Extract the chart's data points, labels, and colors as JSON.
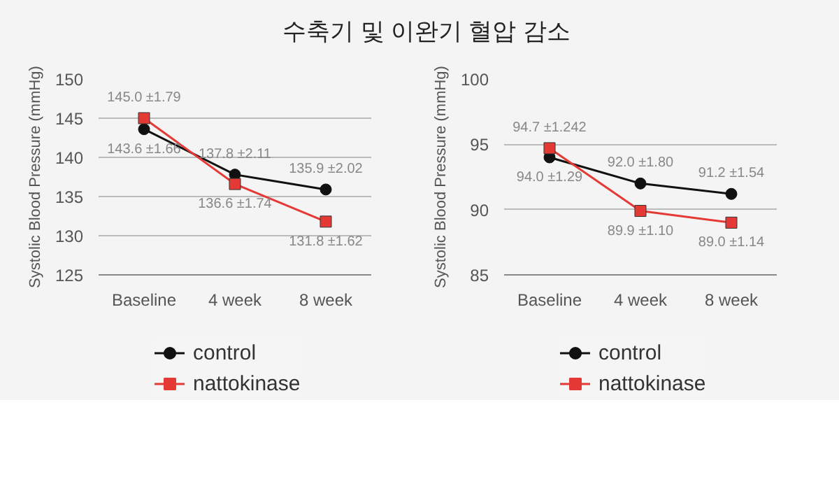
{
  "chart_data": [
    {
      "type": "line",
      "title": "수축기 및 이완기 혈압 감소",
      "ylabel": "Systolic Blood Pressure (mmHg)",
      "categories": [
        "Baseline",
        "4 week",
        "8 week"
      ],
      "ylim": [
        125,
        150
      ],
      "yticks": [
        125,
        130,
        135,
        140,
        145,
        150
      ],
      "grid": "y",
      "legend": "bottom",
      "series": [
        {
          "name": "control",
          "color": "#111111",
          "marker": "circle",
          "values": [
            143.6,
            137.8,
            135.9
          ],
          "value_labels": [
            "143.6 ±1.66",
            "137.8 ±2.11",
            "135.9 ±2.02"
          ]
        },
        {
          "name": "nattokinase",
          "color": "#e53935",
          "marker": "square",
          "values": [
            145.0,
            136.6,
            131.8
          ],
          "value_labels": [
            "145.0 ±1.79",
            "136.6 ±1.74",
            "131.8 ±1.62"
          ]
        }
      ]
    },
    {
      "type": "line",
      "ylabel": "Systolic Blood Pressure (mmHg)",
      "categories": [
        "Baseline",
        "4 week",
        "8 week"
      ],
      "ylim": [
        85,
        100
      ],
      "yticks": [
        85,
        90,
        95,
        100
      ],
      "grid": "y",
      "legend": "bottom",
      "series": [
        {
          "name": "control",
          "color": "#111111",
          "marker": "circle",
          "values": [
            94.0,
            92.0,
            91.2
          ],
          "value_labels": [
            "94.0 ±1.29",
            "92.0 ±1.80",
            "91.2 ±1.54"
          ]
        },
        {
          "name": "nattokinase",
          "color": "#e53935",
          "marker": "square",
          "values": [
            94.7,
            89.9,
            89.0
          ],
          "value_labels": [
            "94.7 ±1.242",
            "89.9 ±1.10",
            "89.0 ±1.14"
          ]
        }
      ]
    }
  ]
}
